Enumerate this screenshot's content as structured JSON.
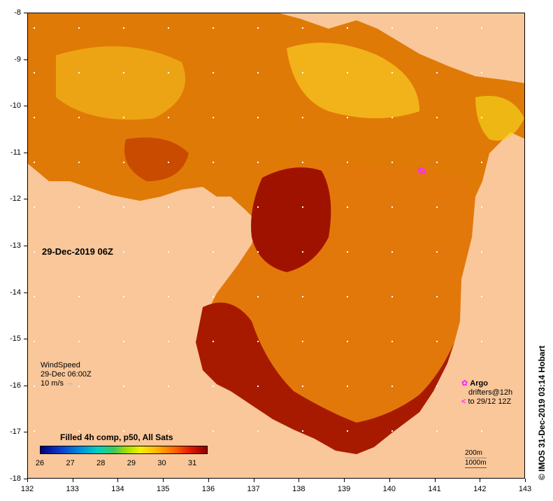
{
  "map": {
    "date_label": "29-Dec-2019 06Z",
    "x_axis": {
      "ticks": [
        "132",
        "133",
        "134",
        "135",
        "136",
        "137",
        "138",
        "139",
        "140",
        "141",
        "142",
        "143"
      ],
      "range": [
        132,
        143
      ]
    },
    "y_axis": {
      "ticks": [
        "-8",
        "-9",
        "-10",
        "-11",
        "-12",
        "-13",
        "-14",
        "-15",
        "-16",
        "-17",
        "-18"
      ],
      "range": [
        -8,
        -18
      ]
    },
    "wind": {
      "title": "WindSpeed",
      "time": "29-Dec 06:00Z",
      "reference": "10 m/s"
    },
    "colorbar": {
      "title": "Filled 4h comp, p50, All Sats",
      "labels": [
        "26",
        "27",
        "28",
        "29",
        "30",
        "31"
      ],
      "range": [
        26,
        31.5
      ]
    },
    "argo_legend": {
      "argo_label": "Argo",
      "drifters_label": "drifters@12h",
      "drifters_to": "to 29/12 12Z"
    },
    "scale_legend": {
      "line1": "200m",
      "line2": "1000m"
    },
    "credit": "© IMOS 31-Dec-2019 03:14 Hobart",
    "colors": {
      "land": "#f9c79a",
      "sst_hot": "#a01200",
      "sst_warm": "#d85a00",
      "sst_mid": "#e8870a",
      "sst_cool": "#f2b31a",
      "sst_coolest": "#f4d21a",
      "argo": "#ff2cff"
    }
  }
}
